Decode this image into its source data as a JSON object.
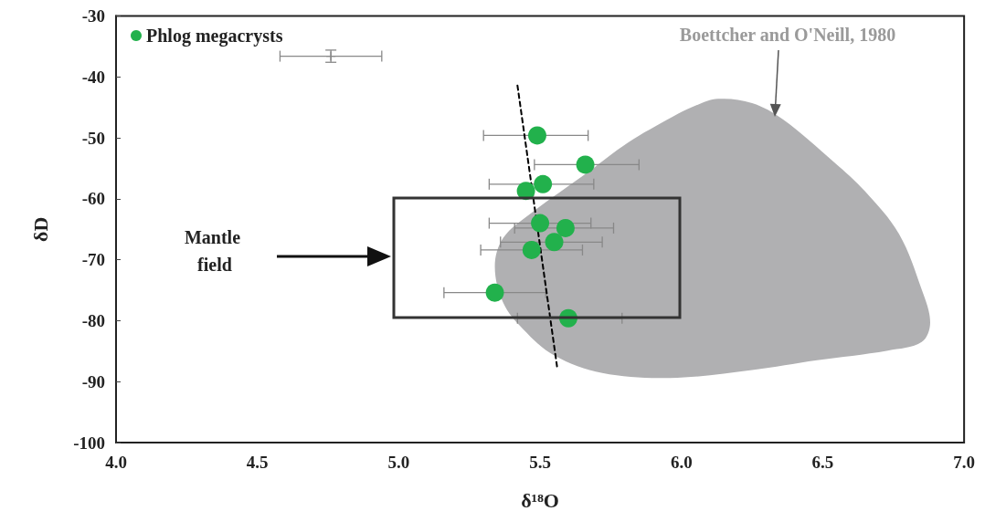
{
  "chart_data": {
    "type": "scatter",
    "xlabel": "δ¹⁸O",
    "ylabel": "δD",
    "xlim": [
      4.0,
      7.0
    ],
    "ylim": [
      -100,
      -30
    ],
    "xticks": [
      {
        "value": 4,
        "label": "4.0"
      },
      4.5,
      {
        "value": 5,
        "label": "5.0"
      },
      5.5,
      {
        "value": 6,
        "label": "6.0"
      },
      6.5,
      {
        "value": 7,
        "label": "7.0"
      }
    ],
    "yticks": [
      -100,
      -90,
      -80,
      -70,
      -60,
      -50,
      -40,
      -30
    ],
    "grid": false,
    "legend": "top left",
    "annotations": [
      "Mantle field",
      "Boettcher and O'Neill, 1980"
    ],
    "series": [
      {
        "type": "area",
        "color": "#b0b0b2",
        "x": [
          5.34,
          5.37,
          5.47,
          5.67,
          5.81,
          5.97,
          6.04,
          6.13,
          6.25,
          6.36,
          6.54,
          6.65,
          6.77,
          6.85,
          6.88,
          6.85,
          6.73,
          6.48,
          6.25,
          5.96,
          5.72,
          5.55,
          5.44,
          5.37
        ],
        "values": [
          -71.1,
          -66.4,
          -62.3,
          -55.6,
          -50.8,
          -46.5,
          -44.9,
          -43.6,
          -44.3,
          -47.0,
          -54.0,
          -58.8,
          -65.8,
          -74.9,
          -80.3,
          -83.5,
          -84.9,
          -86.5,
          -88.1,
          -89.4,
          -88.6,
          -85.7,
          -81.4,
          -77.1
        ]
      },
      {
        "type": "line",
        "color": "#000000",
        "marker": "none",
        "line_style": "dashed",
        "x": [
          5.42,
          5.56
        ],
        "values": [
          -41.4,
          -87.5
        ]
      },
      {
        "type": "scatter",
        "color": "#888888",
        "marker": "cross",
        "x": [
          4.76
        ],
        "values": [
          -36.6
        ],
        "errors": [
          1.0
        ],
        "xerrors": [
          0.18
        ]
      },
      {
        "name": "Phlog megacrysts",
        "marker": "circle",
        "color": "#22b14c",
        "x": [
          5.49,
          5.66,
          5.51,
          5.45,
          5.5,
          5.59,
          5.55,
          5.47,
          5.34,
          5.6
        ],
        "values": [
          -49.6,
          -54.4,
          -57.6,
          -58.7,
          -64.0,
          -64.8,
          -67.1,
          -68.4,
          -75.4,
          -79.6
        ],
        "xerrors": [
          [
            5.3,
            5.67
          ],
          [
            5.48,
            5.85
          ],
          [
            5.32,
            5.69
          ],
          null,
          [
            5.32,
            5.68
          ],
          [
            5.41,
            5.76
          ],
          [
            5.36,
            5.72
          ],
          [
            5.29,
            5.65
          ],
          [
            5.16,
            5.52
          ],
          [
            5.42,
            5.79
          ]
        ]
      }
    ]
  }
}
